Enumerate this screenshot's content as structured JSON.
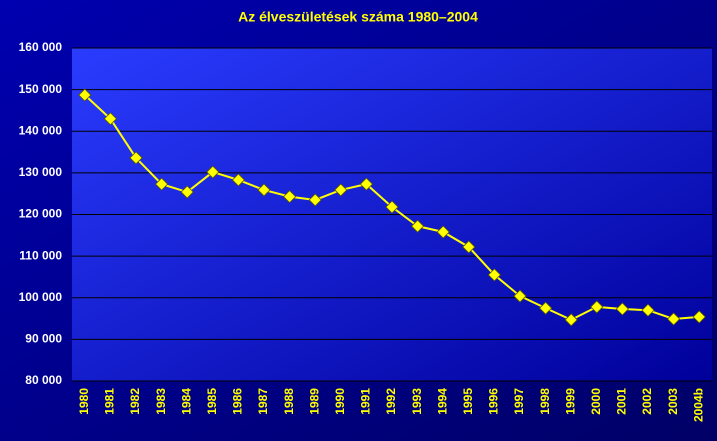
{
  "chart_data": {
    "type": "line",
    "title": "Az élveszületések száma 1980–2004",
    "categories": [
      "1980",
      "1981",
      "1982",
      "1983",
      "1984",
      "1985",
      "1986",
      "1987",
      "1988",
      "1989",
      "1990",
      "1991",
      "1992",
      "1993",
      "1994",
      "1995",
      "1996",
      "1997",
      "1998",
      "1999",
      "2000",
      "2001",
      "2002",
      "2003",
      "2004b"
    ],
    "values": [
      148700,
      143000,
      133600,
      127300,
      125400,
      130200,
      128300,
      125900,
      124300,
      123500,
      125900,
      127300,
      121800,
      117200,
      115800,
      112200,
      105500,
      100400,
      97500,
      94700,
      97800,
      97300,
      97000,
      94900,
      95400
    ],
    "color": "#ffff00",
    "ylim": [
      80000,
      160000
    ],
    "yticks": [
      {
        "value": 80000,
        "label": "80 000"
      },
      {
        "value": 90000,
        "label": "90 000"
      },
      {
        "value": 100000,
        "label": "100 000"
      },
      {
        "value": 110000,
        "label": "110 000"
      },
      {
        "value": 120000,
        "label": "120 000"
      },
      {
        "value": 130000,
        "label": "130 000"
      },
      {
        "value": 140000,
        "label": "140 000"
      },
      {
        "value": 150000,
        "label": "150 000"
      },
      {
        "value": 160000,
        "label": "160 000"
      }
    ],
    "grid": true
  }
}
